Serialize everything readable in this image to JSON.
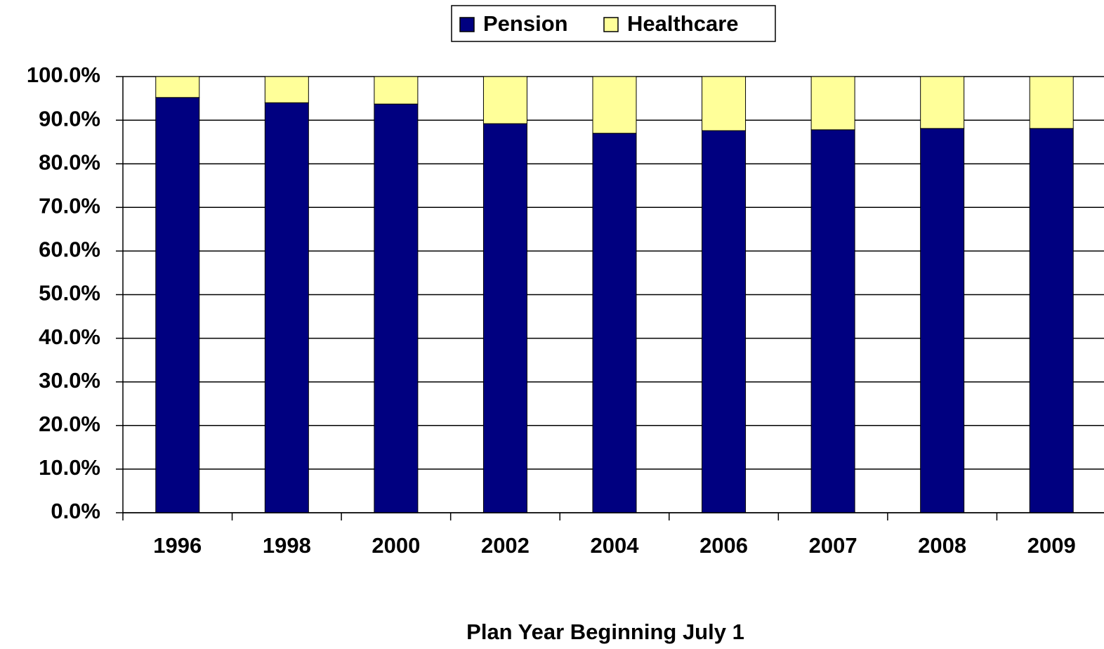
{
  "chart_data": {
    "type": "stacked_bar",
    "x_label": "Plan Year Beginning July 1",
    "categories": [
      "1996",
      "1998",
      "2000",
      "2002",
      "2004",
      "2006",
      "2007",
      "2008",
      "2009"
    ],
    "series": [
      {
        "name": "Pension",
        "color": "#000080",
        "values": [
          95.2,
          94.0,
          93.7,
          89.2,
          87.0,
          87.6,
          87.8,
          88.1,
          88.1
        ]
      },
      {
        "name": "Healthcare",
        "color": "#ffff99",
        "values": [
          4.8,
          6.0,
          6.3,
          10.8,
          13.0,
          12.4,
          12.2,
          11.9,
          11.9
        ]
      }
    ],
    "ylim": [
      0,
      100
    ],
    "yticks": [
      {
        "value": 0,
        "label": "0.0%"
      },
      {
        "value": 10,
        "label": "10.0%"
      },
      {
        "value": 20,
        "label": "20.0%"
      },
      {
        "value": 30,
        "label": "30.0%"
      },
      {
        "value": 40,
        "label": "40.0%"
      },
      {
        "value": 50,
        "label": "50.0%"
      },
      {
        "value": 60,
        "label": "60.0%"
      },
      {
        "value": 70,
        "label": "70.0%"
      },
      {
        "value": 80,
        "label": "80.0%"
      },
      {
        "value": 90,
        "label": "90.0%"
      },
      {
        "value": 100,
        "label": "100.0%"
      }
    ],
    "grid": true,
    "legend": "top"
  }
}
